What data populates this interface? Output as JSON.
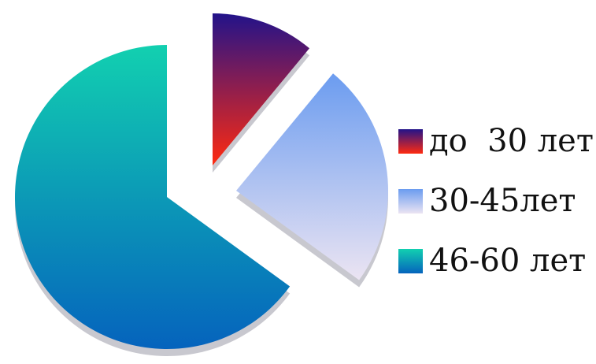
{
  "chart_data": {
    "type": "pie",
    "title": "",
    "slices": [
      {
        "label": "до  30 лет",
        "value": 11,
        "colors": [
          "#22138a",
          "#ff2a10"
        ]
      },
      {
        "label": "30-45лет",
        "value": 24,
        "colors": [
          "#6b9cf0",
          "#ebe4f2"
        ]
      },
      {
        "label": "46-60 лет",
        "value": 65,
        "colors": [
          "#12d0b0",
          "#0563bd"
        ]
      }
    ],
    "legend": "right",
    "exploded": true,
    "three_d": true
  }
}
